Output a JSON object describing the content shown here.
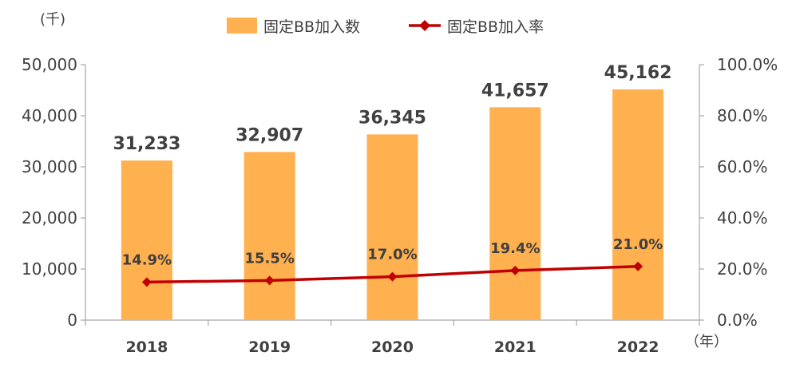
{
  "chart_data": {
    "type": "bar",
    "categories": [
      "2018",
      "2019",
      "2020",
      "2021",
      "2022"
    ],
    "series": [
      {
        "name": "固定BB加入数",
        "type": "bar",
        "axis": "left",
        "color": "#ffb04f",
        "values": [
          31233,
          32907,
          36345,
          41657,
          45162
        ],
        "labels": [
          "31,233",
          "32,907",
          "36,345",
          "41,657",
          "45,162"
        ]
      },
      {
        "name": "固定BB加入率",
        "type": "line",
        "axis": "right",
        "color": "#c00000",
        "values": [
          14.9,
          15.5,
          17.0,
          19.4,
          21.0
        ],
        "labels": [
          "14.9%",
          "15.5%",
          "17.0%",
          "19.4%",
          "21.0%"
        ]
      }
    ],
    "y_left": {
      "unit_label": "(千)",
      "range": [
        0,
        50000
      ],
      "ticks": [
        0,
        10000,
        20000,
        30000,
        40000,
        50000
      ],
      "tick_labels": [
        "0",
        "10,000",
        "20,000",
        "30,000",
        "40,000",
        "50,000"
      ]
    },
    "y_right": {
      "range": [
        0,
        100
      ],
      "ticks": [
        0,
        20,
        40,
        60,
        80,
        100
      ],
      "tick_labels": [
        "0.0%",
        "20.0%",
        "40.0%",
        "60.0%",
        "80.0%",
        "100.0%"
      ]
    },
    "x_unit_label": "（年）",
    "legend_position": "top-center",
    "grid": false
  }
}
